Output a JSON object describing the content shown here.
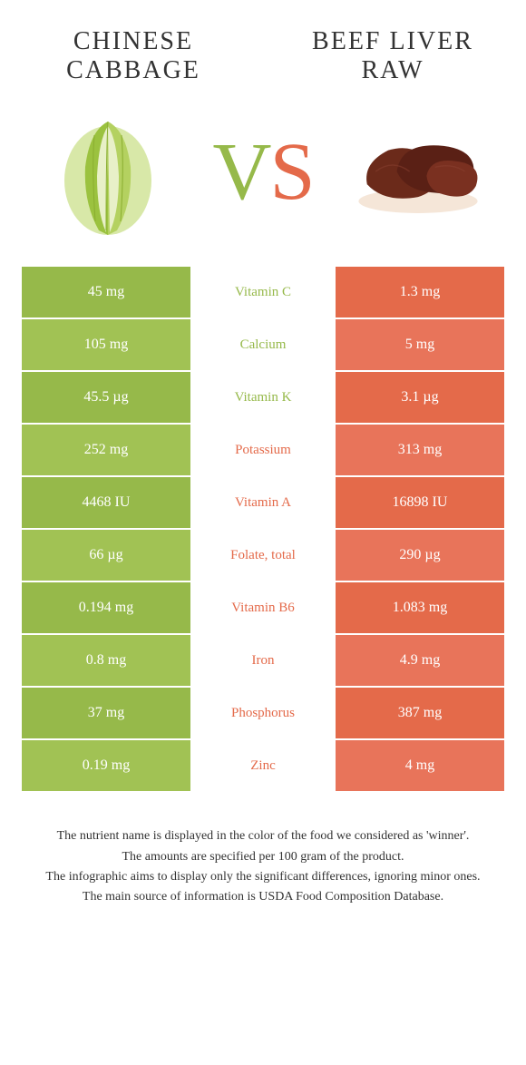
{
  "colors": {
    "green": "#96b94a",
    "green_alt": "#a1c254",
    "orange": "#e46a4a",
    "orange_alt": "#e8745a",
    "white": "#ffffff"
  },
  "left_food": {
    "title_line1": "CHINESE",
    "title_line2": "CABBAGE"
  },
  "right_food": {
    "title_line1": "BEEF LIVER",
    "title_line2": "RAW"
  },
  "vs": {
    "v": "V",
    "s": "S"
  },
  "rows": [
    {
      "nutrient": "Vitamin C",
      "left": "45 mg",
      "right": "1.3 mg",
      "winner": "left"
    },
    {
      "nutrient": "Calcium",
      "left": "105 mg",
      "right": "5 mg",
      "winner": "left"
    },
    {
      "nutrient": "Vitamin K",
      "left": "45.5 µg",
      "right": "3.1 µg",
      "winner": "left"
    },
    {
      "nutrient": "Potassium",
      "left": "252 mg",
      "right": "313 mg",
      "winner": "right"
    },
    {
      "nutrient": "Vitamin A",
      "left": "4468 IU",
      "right": "16898 IU",
      "winner": "right"
    },
    {
      "nutrient": "Folate, total",
      "left": "66 µg",
      "right": "290 µg",
      "winner": "right"
    },
    {
      "nutrient": "Vitamin B6",
      "left": "0.194 mg",
      "right": "1.083 mg",
      "winner": "right"
    },
    {
      "nutrient": "Iron",
      "left": "0.8 mg",
      "right": "4.9 mg",
      "winner": "right"
    },
    {
      "nutrient": "Phosphorus",
      "left": "37 mg",
      "right": "387 mg",
      "winner": "right"
    },
    {
      "nutrient": "Zinc",
      "left": "0.19 mg",
      "right": "4 mg",
      "winner": "right"
    }
  ],
  "footer": {
    "l1": "The nutrient name is displayed in the color of the food we considered as 'winner'.",
    "l2": "The amounts are specified per 100 gram of the product.",
    "l3": "The infographic aims to display only the significant differences, ignoring minor ones.",
    "l4": "The main source of information is USDA Food Composition Database."
  }
}
